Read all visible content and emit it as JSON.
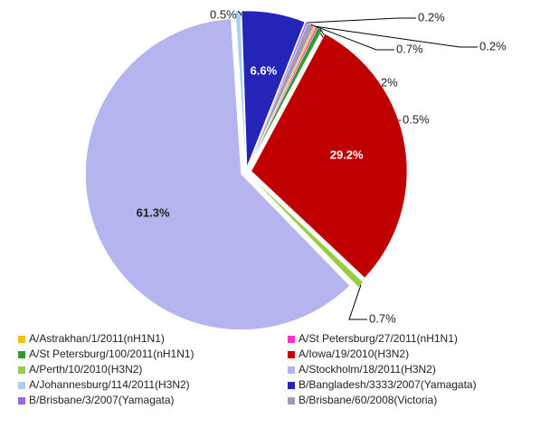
{
  "chart_data": {
    "type": "pie",
    "categories": [
      "A/Astrakhan/1/2011(nH1N1)",
      "A/St Petersburg/27/2011(nH1N1)",
      "A/St Petersburg/100/2011(nH1N1)",
      "A/Iowa/19/2010(H3N2)",
      "A/Perth/10/2010(H3N2)",
      "A/Stockholm/18/2011(H3N2)",
      "A/Johannesburg/114/2011(H3N2)",
      "B/Bangladesh/3333/2007(Yamagata)",
      "B/Brisbane/3/2007(Yamagata)",
      "B/Brisbane/60/2008(Victoria)"
    ],
    "values": [
      0.2,
      0.2,
      0.5,
      29.2,
      0.7,
      61.3,
      0.5,
      6.6,
      0.2,
      0.7
    ],
    "value_labels": [
      "0.2%",
      "0.2%",
      "0.5%",
      "29.2%",
      "0.7%",
      "61.3%",
      "0.5%",
      "6.6%",
      "0.2%",
      "0.7%"
    ],
    "colors": [
      "#f0c000",
      "#ff33cc",
      "#339933",
      "#c00000",
      "#99cc44",
      "#b4b4ee",
      "#a8d0f0",
      "#2424b8",
      "#9966dd",
      "#a399bb"
    ]
  }
}
